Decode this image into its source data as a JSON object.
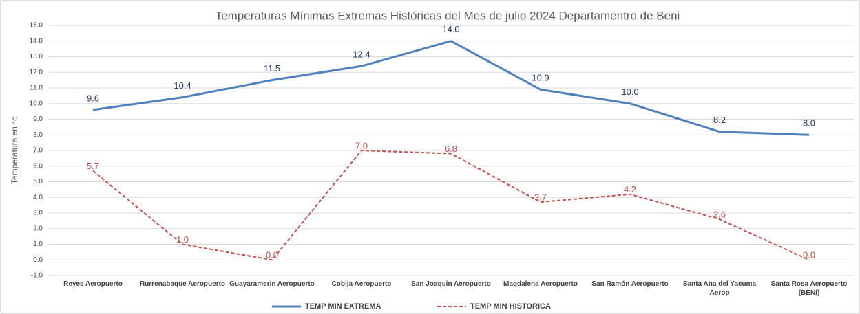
{
  "chart_data": {
    "type": "line",
    "title": "Temperaturas  Mínimas Extremas Históricas del Mes de julio 2024 Departamentro de Beni",
    "y_label": "Temperatura en °c",
    "categories": [
      "Reyes Aeropuerto",
      "Rurrenabaque Aeropuerto",
      "Guayaramerin Aeropuerto",
      "Cobija Aeropuerto",
      "San Joaquin Aeropuerto",
      "Magdalena Aeropuerto",
      "San Ramón Aeropuerto",
      "Santa Ana del Yacuma Aerop",
      "Santa Rosa Aeropuerto (BENI)"
    ],
    "series": [
      {
        "name": "TEMP MIN EXTREMA",
        "color": "#4f81bd",
        "dash": false,
        "values": [
          9.6,
          10.4,
          11.5,
          12.4,
          14.0,
          10.9,
          10.0,
          8.2,
          8.0
        ],
        "value_labels": [
          "9.6",
          "10.4",
          "11.5",
          "12.4",
          "14.0",
          "10.9",
          "10.0",
          "8.2",
          "8.0"
        ]
      },
      {
        "name": "TEMP MIN HISTORICA",
        "color": "#c0504d",
        "dash": true,
        "values": [
          5.7,
          1.0,
          0.0,
          7.0,
          6.8,
          3.7,
          4.2,
          2.6,
          0.0
        ],
        "value_labels": [
          "5.7",
          "1.0",
          "0.0",
          "7.0",
          "6.8",
          "3.7",
          "4.2",
          "2.6",
          "0.0"
        ]
      }
    ],
    "ylim": [
      -1,
      15
    ],
    "yticks": [
      {
        "value": -1,
        "label": "-1.0"
      },
      {
        "value": 0,
        "label": "0.0"
      },
      {
        "value": 1,
        "label": "1.0"
      },
      {
        "value": 2,
        "label": "2.0"
      },
      {
        "value": 3,
        "label": "3.0"
      },
      {
        "value": 4,
        "label": "4.0"
      },
      {
        "value": 5,
        "label": "5.0"
      },
      {
        "value": 6,
        "label": "6.0"
      },
      {
        "value": 7,
        "label": "7.0"
      },
      {
        "value": 8,
        "label": "8.0"
      },
      {
        "value": 9,
        "label": "9.0"
      },
      {
        "value": 10,
        "label": "10.0"
      },
      {
        "value": 11,
        "label": "11.0"
      },
      {
        "value": 12,
        "label": "12.0"
      },
      {
        "value": 13,
        "label": "13.0"
      },
      {
        "value": 14,
        "label": "14.0"
      },
      {
        "value": 15,
        "label": "15.0"
      }
    ],
    "grid": true,
    "legend": "bottom"
  }
}
